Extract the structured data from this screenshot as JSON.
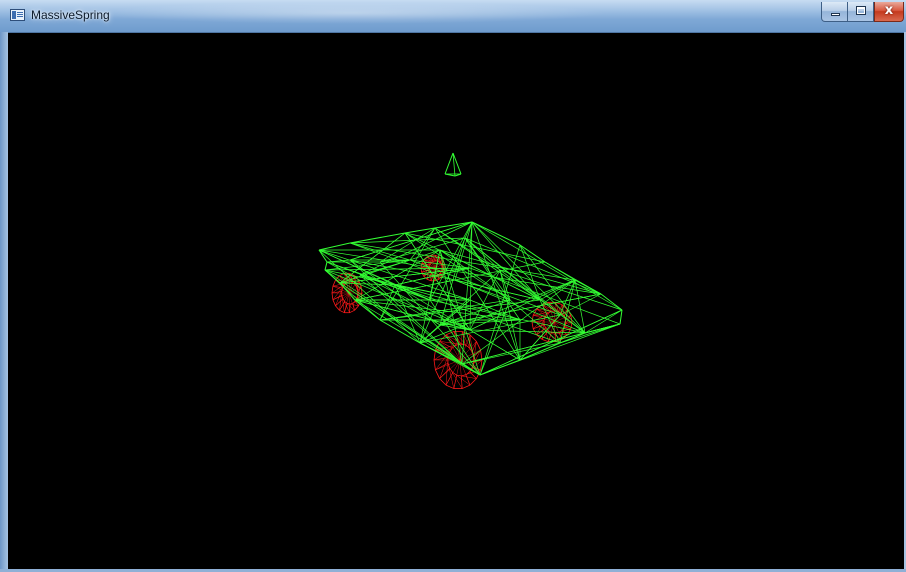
{
  "window": {
    "title": "MassiveSpring",
    "icon": "app-window-icon",
    "controls": {
      "minimize_icon": "minimize-icon",
      "maximize_icon": "maximize-icon",
      "close_icon": "close-icon",
      "close_glyph": "x"
    }
  },
  "viewport": {
    "background": "#000000",
    "body_wire_color": "#33ff33",
    "wheel_wire_color": "#ff1a1a",
    "marker_color": "#33ff33"
  }
}
